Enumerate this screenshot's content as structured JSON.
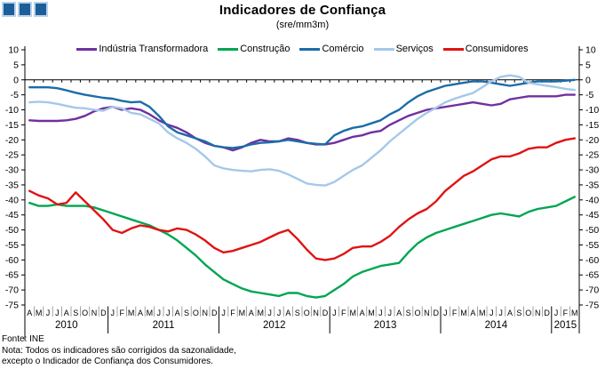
{
  "header": {
    "title": "Indicadores de Confiança",
    "subtitle": "(sre/mm3m)"
  },
  "logo": {
    "square_count": 3,
    "fill": "#1C5E99",
    "border": "#B9D3E8"
  },
  "chart_data": {
    "type": "line",
    "title": "Indicadores de Confiança",
    "subtitle": "(sre/mm3m)",
    "ylim": [
      -75,
      10
    ],
    "ytick_step": 5,
    "grid": false,
    "legend_position": "top",
    "axis_color": "#000000",
    "month_separator_color": "#8C8C8C",
    "years": [
      {
        "label": "2010",
        "months": [
          "A",
          "M",
          "J",
          "J",
          "A",
          "S",
          "O",
          "N",
          "D"
        ]
      },
      {
        "label": "2011",
        "months": [
          "J",
          "F",
          "M",
          "A",
          "M",
          "J",
          "J",
          "A",
          "S",
          "O",
          "N",
          "D"
        ]
      },
      {
        "label": "2012",
        "months": [
          "J",
          "F",
          "M",
          "A",
          "M",
          "J",
          "J",
          "A",
          "S",
          "O",
          "N",
          "D"
        ]
      },
      {
        "label": "2013",
        "months": [
          "J",
          "F",
          "M",
          "A",
          "M",
          "J",
          "J",
          "A",
          "S",
          "O",
          "N",
          "D"
        ]
      },
      {
        "label": "2014",
        "months": [
          "J",
          "F",
          "M",
          "A",
          "M",
          "J",
          "J",
          "A",
          "S",
          "O",
          "N",
          "D"
        ]
      },
      {
        "label": "2015",
        "months": [
          "J",
          "F",
          "M"
        ]
      }
    ],
    "series": [
      {
        "name": "Indústria Transformadora",
        "color": "#7030A0",
        "values": [
          -13.5,
          -13.7,
          -13.7,
          -13.7,
          -13.5,
          -13,
          -12,
          -10.5,
          -9.5,
          -9,
          -10,
          -9.5,
          -10,
          -11.5,
          -13.5,
          -15,
          -16,
          -17.5,
          -19.5,
          -21,
          -22,
          -22.5,
          -23.5,
          -22.5,
          -21,
          -20,
          -20.5,
          -20.5,
          -19.5,
          -20,
          -21,
          -21.5,
          -21.5,
          -21,
          -20,
          -19,
          -18.5,
          -17.5,
          -17,
          -15,
          -13.5,
          -12,
          -11,
          -10,
          -9.5,
          -9,
          -8.5,
          -8,
          -7.5,
          -8,
          -8.5,
          -8,
          -6.5,
          -6,
          -5.5,
          -5.5,
          -5.5,
          -5.5,
          -5,
          -5
        ]
      },
      {
        "name": "Construção",
        "color": "#00A651",
        "values": [
          -41,
          -42,
          -42,
          -41.5,
          -42,
          -42,
          -42,
          -42.5,
          -43.5,
          -44.5,
          -45.5,
          -46.5,
          -47.5,
          -48.5,
          -50,
          -51.5,
          -53.5,
          -56,
          -58.5,
          -61.5,
          -64,
          -66.5,
          -68,
          -69.5,
          -70.5,
          -71,
          -71.5,
          -72,
          -71,
          -71,
          -72,
          -72.5,
          -72,
          -70,
          -68,
          -65.5,
          -64,
          -63,
          -62,
          -61.5,
          -61,
          -57.5,
          -54.5,
          -52.5,
          -51,
          -50,
          -49,
          -48,
          -47,
          -46,
          -45,
          -44.5,
          -45,
          -45.5,
          -44,
          -43,
          -42.5,
          -42,
          -40.5,
          -39
        ]
      },
      {
        "name": "Comércio",
        "color": "#1B6CA8",
        "values": [
          -2.5,
          -2.5,
          -2.5,
          -2.8,
          -3.5,
          -4.3,
          -5,
          -5.5,
          -6,
          -6.3,
          -7,
          -7.5,
          -7.3,
          -9,
          -12,
          -15.5,
          -17.5,
          -18.5,
          -19.5,
          -20.5,
          -22,
          -22.5,
          -22.7,
          -22.3,
          -21.5,
          -21,
          -20.8,
          -20.5,
          -20,
          -20.5,
          -21,
          -21.3,
          -21.5,
          -18.5,
          -17,
          -16,
          -15.5,
          -14.5,
          -13.5,
          -11.5,
          -10,
          -7.5,
          -5.5,
          -4,
          -3,
          -2,
          -1.5,
          -1,
          -0.5,
          -0.5,
          -1,
          -1.5,
          -2,
          -1.5,
          -1,
          -0.5,
          -0.5,
          -0.5,
          -0.3,
          0
        ]
      },
      {
        "name": "Serviços",
        "color": "#A5C8E9",
        "values": [
          -7.5,
          -7.3,
          -7.5,
          -8,
          -8.7,
          -9.3,
          -9.5,
          -10,
          -10.3,
          -9,
          -9.5,
          -11,
          -11.5,
          -13,
          -14.5,
          -17.5,
          -19.5,
          -21,
          -23,
          -25.5,
          -28.5,
          -29.5,
          -30,
          -30.3,
          -30.5,
          -30,
          -29.8,
          -30.3,
          -31.5,
          -33,
          -34.5,
          -35,
          -35.2,
          -34,
          -32,
          -30,
          -28.5,
          -26,
          -23.5,
          -20.5,
          -18,
          -15.5,
          -13,
          -11,
          -9.3,
          -7.5,
          -6.3,
          -5.3,
          -4.4,
          -2.5,
          -0.5,
          1,
          1.5,
          1,
          -1,
          -1.5,
          -2,
          -2.4,
          -3,
          -3.4
        ]
      },
      {
        "name": "Consumidores",
        "color": "#E01313",
        "values": [
          -37,
          -38.5,
          -39.5,
          -41.5,
          -41,
          -37.5,
          -40.5,
          -43.5,
          -46.5,
          -50,
          -51,
          -49.5,
          -48.5,
          -49,
          -50,
          -50.5,
          -49.5,
          -50,
          -51.5,
          -53.5,
          -56,
          -57.5,
          -57,
          -56,
          -55,
          -54,
          -52.5,
          -51,
          -50,
          -53,
          -56.5,
          -59.5,
          -60,
          -59.5,
          -58,
          -56,
          -55.5,
          -55.5,
          -54,
          -52,
          -49,
          -46.5,
          -44.5,
          -43,
          -40.5,
          -37,
          -34.5,
          -32,
          -30.5,
          -28.5,
          -26.5,
          -25.5,
          -25.5,
          -24.5,
          -23,
          -22.5,
          -22.5,
          -21,
          -20,
          -19.5
        ]
      }
    ]
  },
  "footer": {
    "source": "Fonte: INE",
    "note1": "Nota: Todos os indicadores são corrigidos da sazonalidade,",
    "note2": "excepto o Indicador de Confiança dos Consumidores."
  }
}
